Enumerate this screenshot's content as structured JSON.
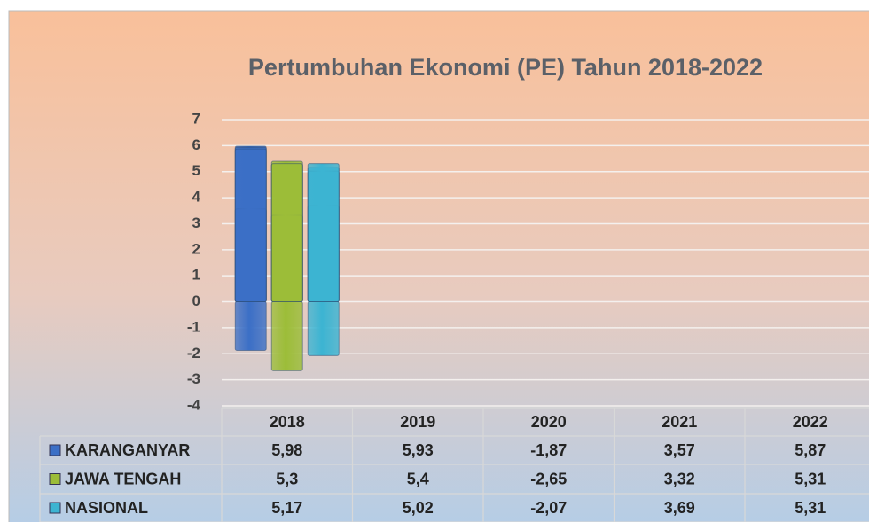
{
  "chart_data": {
    "type": "bar",
    "title": "Pertumbuhan Ekonomi (PE) Tahun 2018-2022",
    "categories": [
      "2018",
      "2019",
      "2020",
      "2021",
      "2022"
    ],
    "series": [
      {
        "name": "KARANGANYAR",
        "color": "#3b6fc6",
        "values": [
          5.98,
          5.93,
          -1.87,
          3.57,
          5.87
        ],
        "value_labels": [
          "5,98",
          "5,93",
          "-1,87",
          "3,57",
          "5,87"
        ]
      },
      {
        "name": "JAWA TENGAH",
        "color": "#9cbd38",
        "values": [
          5.3,
          5.4,
          -2.65,
          3.32,
          5.31
        ],
        "value_labels": [
          "5,3",
          "5,4",
          "-2,65",
          "3,32",
          "5,31"
        ]
      },
      {
        "name": "NASIONAL",
        "color": "#3cb4d2",
        "values": [
          5.17,
          5.02,
          -2.07,
          3.69,
          5.31
        ],
        "value_labels": [
          "5,17",
          "5,02",
          "-2,07",
          "3,69",
          "5,31"
        ]
      }
    ],
    "ylim": [
      -4,
      7
    ],
    "yticks": [
      -4,
      -3,
      -2,
      -1,
      0,
      1,
      2,
      3,
      4,
      5,
      6,
      7
    ],
    "grid": true
  }
}
